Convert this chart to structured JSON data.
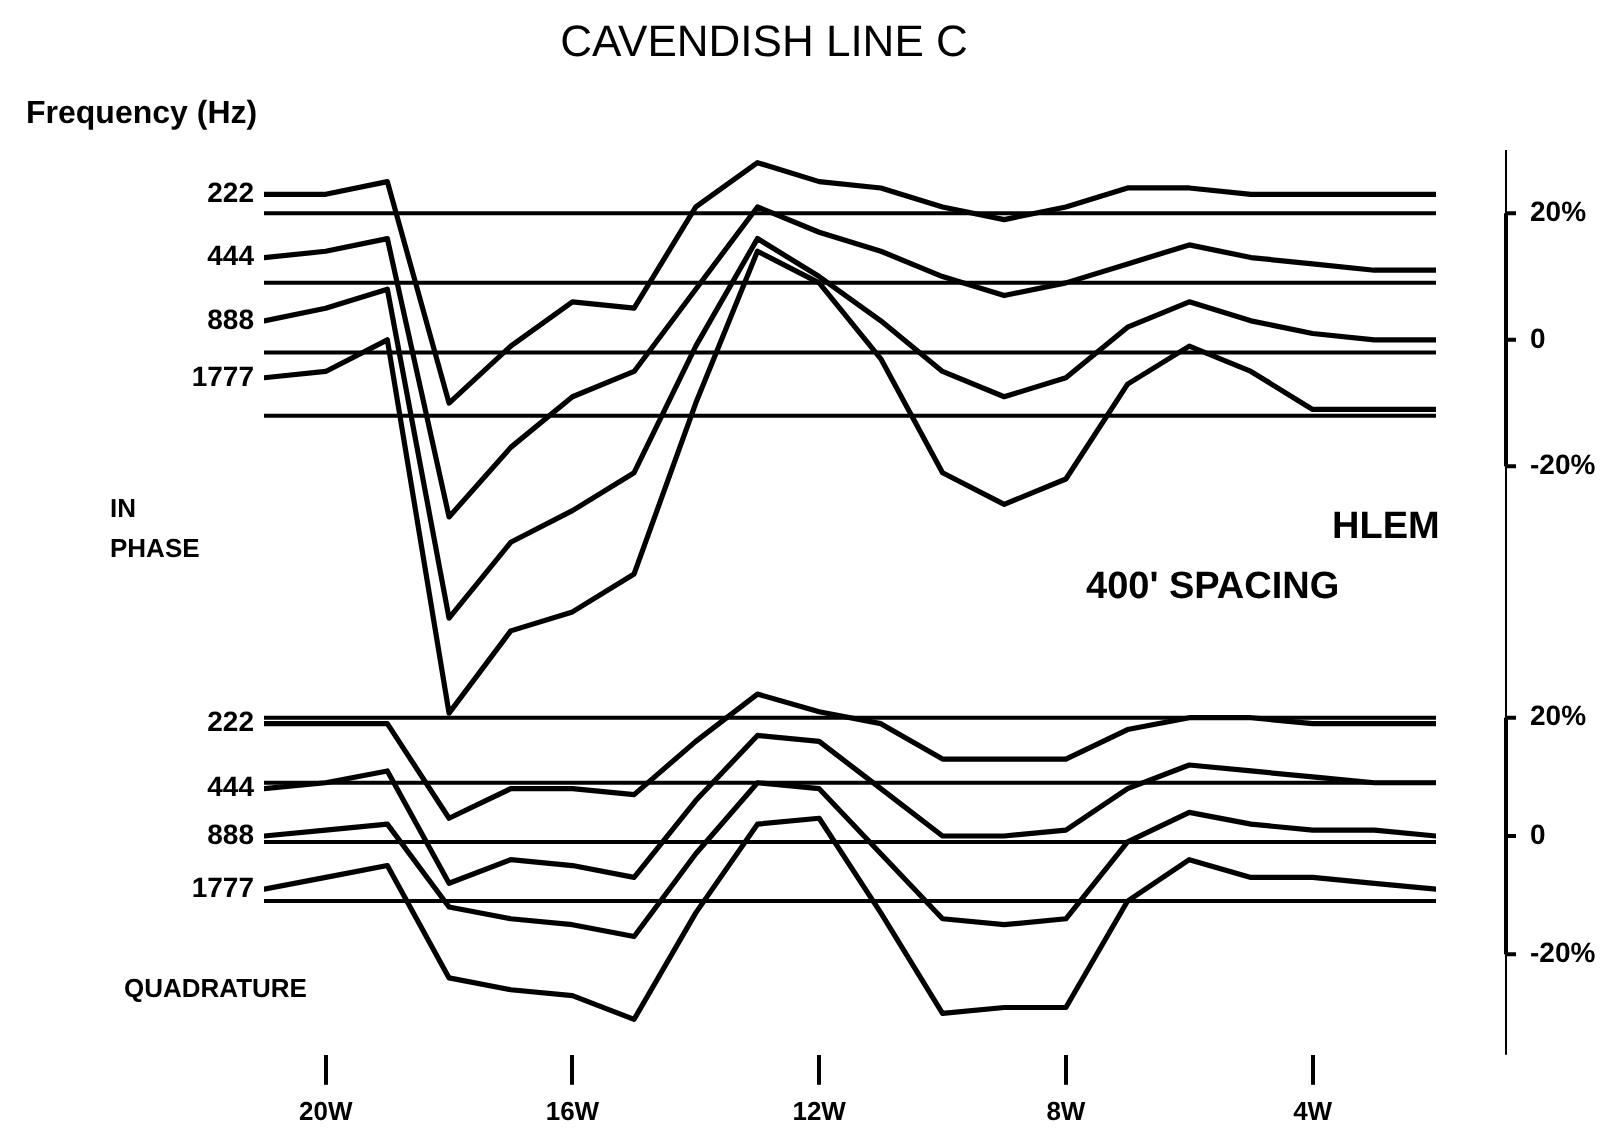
{
  "chart_data": {
    "type": "line",
    "title": "CAVENDISH LINE C",
    "x": [
      21,
      20,
      19,
      18,
      17,
      16,
      15,
      14,
      13,
      12,
      11,
      10,
      9,
      8,
      7,
      6,
      5,
      4,
      3,
      2
    ],
    "xlim": [
      21,
      2
    ],
    "xticks": [
      {
        "value": 20,
        "label": "20W"
      },
      {
        "value": 16,
        "label": "16W"
      },
      {
        "value": 12,
        "label": "12W"
      },
      {
        "value": 8,
        "label": "8W"
      },
      {
        "value": 4,
        "label": "4W"
      }
    ],
    "ylim": [
      -113,
      30
    ],
    "yticks": [
      {
        "value": 20,
        "label": "20%"
      },
      0,
      {
        "value": -20,
        "label": "-20%"
      }
    ],
    "y2lim": [
      -37,
      116
    ],
    "y2ticks": [
      {
        "value": 20,
        "label": "20%"
      },
      0,
      {
        "value": -20,
        "label": "-20%"
      }
    ],
    "line_style": "solid",
    "series": [
      {
        "name": "222",
        "color": "#000000",
        "values": [
          23,
          23,
          25,
          -10,
          -1,
          6,
          5,
          21,
          28,
          25,
          24,
          21,
          19,
          21,
          24,
          24,
          23,
          23,
          23,
          23
        ]
      },
      {
        "name": "444",
        "color": "#000000",
        "values": [
          13,
          14,
          16,
          -28,
          -17,
          -9,
          -5,
          8,
          21,
          17,
          14,
          10,
          7,
          9,
          12,
          15,
          13,
          12,
          11,
          11
        ]
      },
      {
        "name": "888",
        "color": "#000000",
        "values": [
          3,
          5,
          8,
          -44,
          -32,
          -27,
          -21,
          -1,
          16,
          10,
          3,
          -5,
          -9,
          -6,
          2,
          6,
          3,
          1,
          0,
          0
        ]
      },
      {
        "name": "1777",
        "color": "#000000",
        "values": [
          -6,
          -5,
          0,
          -59,
          -46,
          -43,
          -37,
          -10,
          14,
          9,
          -3,
          -21,
          -26,
          -22,
          -7,
          -1,
          -5,
          -11,
          -11,
          -11
        ]
      },
      {
        "name": "222",
        "color": "#000000",
        "axis": "y2",
        "values": [
          19,
          19,
          19,
          3,
          8,
          8,
          7,
          16,
          24,
          21,
          19,
          13,
          13,
          13,
          18,
          20,
          20,
          19,
          19,
          19
        ]
      },
      {
        "name": "444",
        "color": "#000000",
        "axis": "y2",
        "values": [
          8,
          9,
          11,
          -8,
          -4,
          -5,
          -7,
          6,
          17,
          16,
          8,
          0,
          0,
          1,
          8,
          12,
          11,
          10,
          9,
          9
        ]
      },
      {
        "name": "888",
        "color": "#000000",
        "axis": "y2",
        "values": [
          0,
          1,
          2,
          -12,
          -14,
          -15,
          -17,
          -3,
          9,
          8,
          -3,
          -14,
          -15,
          -14,
          -1,
          4,
          2,
          1,
          1,
          0
        ]
      },
      {
        "name": "1777",
        "color": "#000000",
        "axis": "y2",
        "values": [
          -9,
          -7,
          -5,
          -24,
          -26,
          -27,
          -31,
          -13,
          2,
          3,
          -13,
          -30,
          -29,
          -29,
          -11,
          -4,
          -7,
          -7,
          -8,
          -9
        ]
      }
    ],
    "ref_lines": [
      {
        "axis": "y",
        "value": 20
      },
      {
        "axis": "y",
        "value": 9
      },
      {
        "axis": "y",
        "value": -2
      },
      {
        "axis": "y",
        "value": -12
      },
      {
        "axis": "y2",
        "value": 20
      },
      {
        "axis": "y2",
        "value": 9
      },
      {
        "axis": "y2",
        "value": -1
      },
      {
        "axis": "y2",
        "value": -11
      }
    ],
    "annotations": [
      "Frequency (Hz)",
      "IN PHASE",
      "HLEM",
      "400' SPACING",
      "QUADRATURE"
    ]
  }
}
